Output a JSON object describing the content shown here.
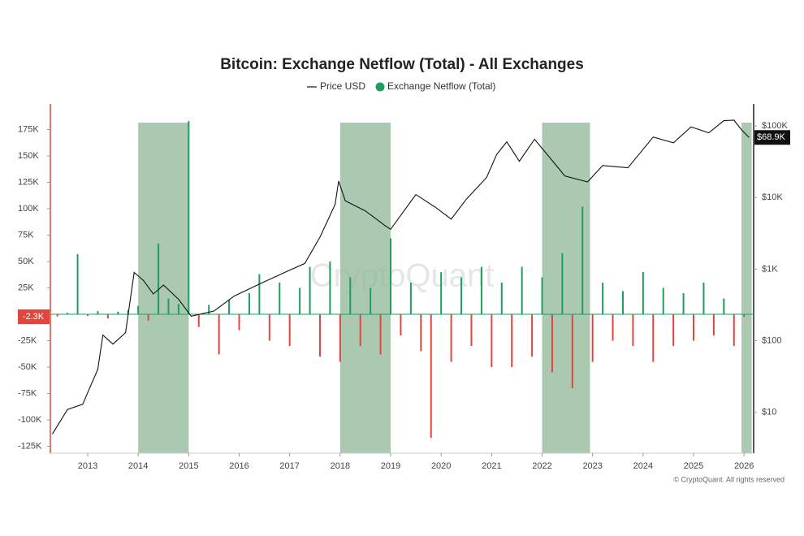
{
  "chart_data": {
    "type": "bar-line",
    "title": "Bitcoin: Exchange Netflow (Total) - All Exchanges",
    "watermark": "CryptoQuant",
    "footer": "© CryptoQuant. All rights reserved",
    "xlim": [
      2012.26,
      2026.19
    ],
    "xticks": [
      2013,
      2014,
      2015,
      2016,
      2017,
      2018,
      2019,
      2020,
      2021,
      2022,
      2023,
      2024,
      2025,
      2026
    ],
    "ylim": [
      -131500,
      197700
    ],
    "yticks": [
      {
        "value": 175000,
        "label": "175K"
      },
      {
        "value": 150000,
        "label": "150K"
      },
      {
        "value": 125000,
        "label": "125K"
      },
      {
        "value": 100000,
        "label": "100K"
      },
      {
        "value": 75000,
        "label": "75K"
      },
      {
        "value": 50000,
        "label": "50K"
      },
      {
        "value": 25000,
        "label": "25K"
      },
      {
        "value": -25000,
        "label": "-25K"
      },
      {
        "value": -50000,
        "label": "-50K"
      },
      {
        "value": -75000,
        "label": "-75K"
      },
      {
        "value": -100000,
        "label": "-100K"
      },
      {
        "value": -125000,
        "label": "-125K"
      }
    ],
    "y2lim": [
      2.7,
      192000
    ],
    "y2_log": true,
    "y2ticks": [
      {
        "value": 100000,
        "label": "$100K"
      },
      {
        "value": 10000,
        "label": "$10K"
      },
      {
        "value": 1000,
        "label": "$1K"
      },
      {
        "value": 100,
        "label": "$100"
      },
      {
        "value": 10,
        "label": "$10"
      }
    ],
    "highlights": [
      [
        2014,
        2015
      ],
      [
        2018,
        2019
      ],
      [
        2022,
        2022.95
      ],
      [
        2025.95,
        2026.15
      ]
    ],
    "highlight_color": "#8fb596",
    "last_price": {
      "value": 68900,
      "label": "$68.9K"
    },
    "last_netflow": {
      "value": -2300,
      "label": "-2.3K"
    },
    "series": [
      {
        "name": "Price USD",
        "color": "#111111",
        "axis": "y2",
        "x": [
          2012.3,
          2012.6,
          2012.9,
          2013.2,
          2013.3,
          2013.5,
          2013.75,
          2013.92,
          2014.1,
          2014.3,
          2014.5,
          2014.8,
          2015.05,
          2015.5,
          2015.9,
          2016.4,
          2016.9,
          2017.3,
          2017.6,
          2017.9,
          2017.97,
          2018.1,
          2018.5,
          2018.9,
          2019.0,
          2019.5,
          2019.9,
          2020.2,
          2020.5,
          2020.9,
          2021.1,
          2021.3,
          2021.55,
          2021.85,
          2022.1,
          2022.45,
          2022.9,
          2023.2,
          2023.7,
          2024.2,
          2024.6,
          2024.95,
          2025.3,
          2025.6,
          2025.8,
          2025.95,
          2026.1
        ],
        "values": [
          5,
          11,
          13,
          40,
          120,
          90,
          130,
          900,
          700,
          450,
          600,
          380,
          220,
          260,
          420,
          620,
          900,
          1200,
          2800,
          8000,
          17000,
          9000,
          6500,
          4000,
          3600,
          11000,
          7200,
          5000,
          9500,
          19000,
          40000,
          60000,
          32000,
          65000,
          40000,
          20000,
          16500,
          28000,
          26000,
          70000,
          58000,
          97000,
          80000,
          118000,
          120000,
          88000,
          68900
        ]
      },
      {
        "name": "Exchange Netflow (Total)",
        "color": "#1e9e62",
        "negative_color": "#e0463e",
        "x": [
          2012.4,
          2012.6,
          2012.8,
          2013.0,
          2013.2,
          2013.4,
          2013.6,
          2013.8,
          2014.0,
          2014.2,
          2014.4,
          2014.6,
          2014.8,
          2015.0,
          2015.2,
          2015.4,
          2015.6,
          2015.8,
          2016.0,
          2016.2,
          2016.4,
          2016.6,
          2016.8,
          2017.0,
          2017.2,
          2017.4,
          2017.6,
          2017.8,
          2018.0,
          2018.2,
          2018.4,
          2018.6,
          2018.8,
          2019.0,
          2019.2,
          2019.4,
          2019.6,
          2019.8,
          2020.0,
          2020.2,
          2020.4,
          2020.6,
          2020.8,
          2021.0,
          2021.2,
          2021.4,
          2021.6,
          2021.8,
          2022.0,
          2022.2,
          2022.4,
          2022.6,
          2022.8,
          2023.0,
          2023.2,
          2023.4,
          2023.6,
          2023.8,
          2024.0,
          2024.2,
          2024.4,
          2024.6,
          2024.8,
          2025.0,
          2025.2,
          2025.4,
          2025.6,
          2025.8,
          2026.0
        ],
        "values": [
          -2000,
          1500,
          57000,
          -1500,
          3000,
          -4000,
          2500,
          4000,
          8000,
          -6000,
          67000,
          15000,
          10000,
          183000,
          -12000,
          9000,
          -38000,
          14000,
          -15000,
          20000,
          38000,
          -25000,
          30000,
          -30000,
          25000,
          45000,
          -40000,
          50000,
          -45000,
          35000,
          -30000,
          25000,
          -38000,
          72000,
          -20000,
          30000,
          -35000,
          -117000,
          40000,
          -45000,
          35000,
          -30000,
          45000,
          -50000,
          30000,
          -50000,
          45000,
          -40000,
          35000,
          -55000,
          58000,
          -70000,
          102000,
          -45000,
          30000,
          -25000,
          22000,
          -30000,
          40000,
          -45000,
          25000,
          -30000,
          20000,
          -25000,
          30000,
          -20000,
          15000,
          -30000,
          -2300
        ]
      }
    ]
  }
}
